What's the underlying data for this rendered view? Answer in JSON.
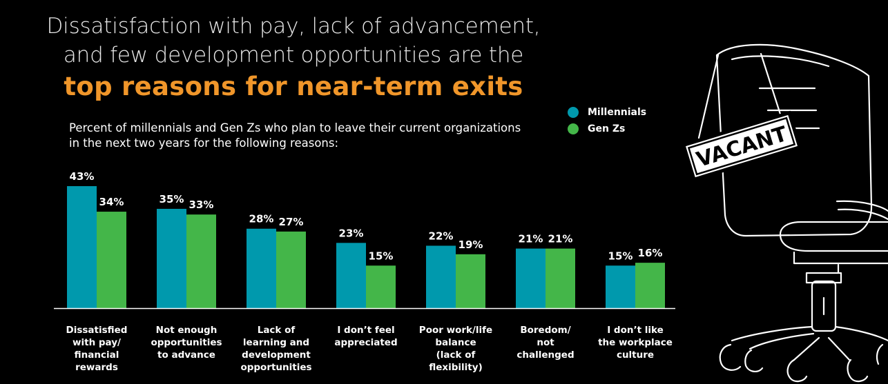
{
  "title": {
    "line1": "Dissatisfaction with pay, lack of advancement,",
    "line2": "and few development opportunities are the",
    "highlight": "top reasons for near-term exits"
  },
  "subtitle": {
    "line1": "Percent of millennials and Gen Zs who plan to leave their current organizations",
    "line2": "in the next two years for the following reasons:"
  },
  "illustration": {
    "sign_text": "VACANT",
    "icon": "office-chair-icon"
  },
  "colors": {
    "background": "#000000",
    "millennials": "#0099ad",
    "genz": "#44b649",
    "highlight": "#f0962a"
  },
  "chart_data": {
    "type": "bar",
    "categories": [
      [
        "Dissatisfied",
        "with pay/",
        "financial",
        "rewards"
      ],
      [
        "Not enough",
        "opportunities",
        "to advance"
      ],
      [
        "Lack of",
        "learning and",
        "development",
        "opportunities"
      ],
      [
        "I don’t feel",
        "appreciated"
      ],
      [
        "Poor work/life",
        "balance",
        "(lack of",
        "flexibility)"
      ],
      [
        "Boredom/",
        "not",
        "challenged"
      ],
      [
        "I don’t like",
        "the workplace",
        "culture"
      ]
    ],
    "series": [
      {
        "name": "Millennials",
        "color": "#0099ad",
        "values": [
          43,
          35,
          28,
          23,
          22,
          21,
          15
        ]
      },
      {
        "name": "Gen Zs",
        "color": "#44b649",
        "values": [
          34,
          33,
          27,
          15,
          19,
          21,
          16
        ]
      }
    ],
    "value_suffix": "%",
    "ylim": [
      0,
      43
    ],
    "grid": false,
    "legend_position": "top-right"
  }
}
